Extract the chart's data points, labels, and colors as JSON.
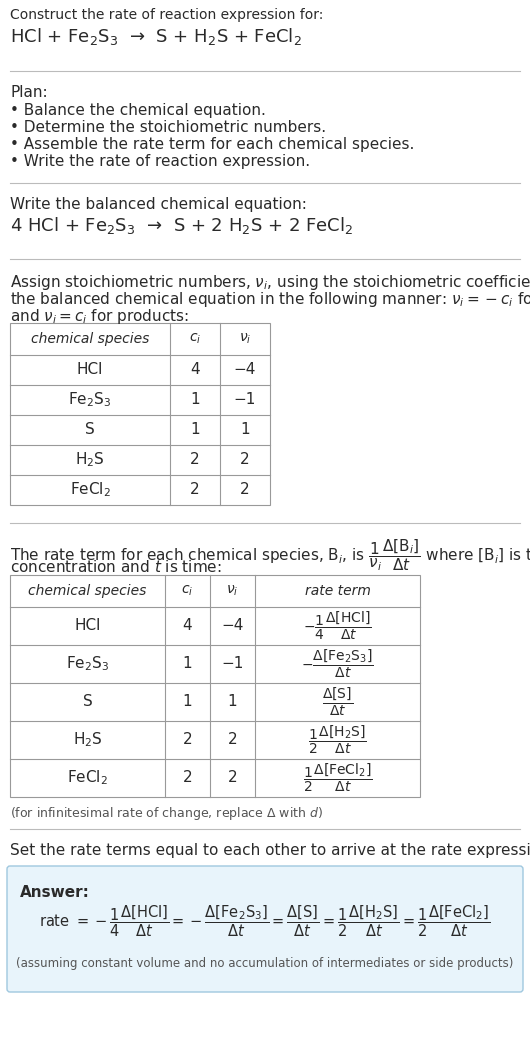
{
  "title_line1": "Construct the rate of reaction expression for:",
  "title_line2": "HCl + Fe$_2$S$_3$  →  S + H$_2$S + FeCl$_2$",
  "plan_title": "Plan:",
  "plan_items": [
    "• Balance the chemical equation.",
    "• Determine the stoichiometric numbers.",
    "• Assemble the rate term for each chemical species.",
    "• Write the rate of reaction expression."
  ],
  "balanced_eq_label": "Write the balanced chemical equation:",
  "balanced_eq": "4 HCl + Fe$_2$S$_3$  →  S + 2 H$_2$S + 2 FeCl$_2$",
  "stoich_intro1": "Assign stoichiometric numbers, $\\nu_i$, using the stoichiometric coefficients, $c_i$, from",
  "stoich_intro2": "the balanced chemical equation in the following manner: $\\nu_i = -c_i$ for reactants",
  "stoich_intro3": "and $\\nu_i = c_i$ for products:",
  "table1_headers": [
    "chemical species",
    "$c_i$",
    "$\\nu_i$"
  ],
  "table1_rows": [
    [
      "HCl",
      "4",
      "−4"
    ],
    [
      "Fe$_2$S$_3$",
      "1",
      "−1"
    ],
    [
      "S",
      "1",
      "1"
    ],
    [
      "H$_2$S",
      "2",
      "2"
    ],
    [
      "FeCl$_2$",
      "2",
      "2"
    ]
  ],
  "rate_intro1": "The rate term for each chemical species, B$_i$, is $\\dfrac{1}{\\nu_i}\\dfrac{\\Delta[\\mathrm{B}_i]}{\\Delta t}$ where [B$_i$] is the amount",
  "rate_intro2": "concentration and $t$ is time:",
  "table2_headers": [
    "chemical species",
    "$c_i$",
    "$\\nu_i$",
    "rate term"
  ],
  "table2_rows": [
    [
      "HCl",
      "4",
      "−4"
    ],
    [
      "Fe$_2$S$_3$",
      "1",
      "−1"
    ],
    [
      "S",
      "1",
      "1"
    ],
    [
      "H$_2$S",
      "2",
      "2"
    ],
    [
      "FeCl$_2$",
      "2",
      "2"
    ]
  ],
  "infinitesimal_note": "(for infinitesimal rate of change, replace Δ with $d$)",
  "set_equal_text": "Set the rate terms equal to each other to arrive at the rate expression:",
  "answer_label": "Answer:",
  "answer_box_color": "#e8f4fb",
  "answer_box_border": "#a0c8df",
  "answer_note": "(assuming constant volume and no accumulation of intermediates or side products)",
  "bg_color": "#ffffff",
  "text_color": "#2a2a2a",
  "gray_color": "#555555",
  "table_border_color": "#999999",
  "sep_color": "#bbbbbb",
  "fs": 11.0,
  "fs_small": 10.0,
  "fs_big": 13.0
}
